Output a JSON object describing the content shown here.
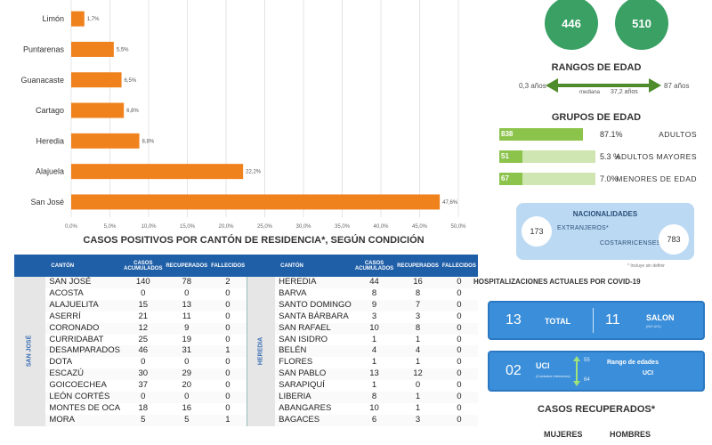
{
  "chart_data": {
    "type": "bar",
    "orientation": "horizontal",
    "categories": [
      "Limón",
      "Puntarenas",
      "Guanacaste",
      "Cartago",
      "Heredia",
      "Alajuela",
      "San José"
    ],
    "values": [
      1.7,
      5.5,
      6.5,
      6.8,
      8.8,
      22.2,
      47.6
    ],
    "value_labels": [
      "1,7%",
      "5,5%",
      "6,5%",
      "6,8%",
      "8,8%",
      "22,2%",
      "47,6%"
    ],
    "xlim": [
      0,
      50
    ],
    "x_ticks": [
      "0,0%",
      "5,0%",
      "10,0%",
      "15,0%",
      "20,0%",
      "25,0%",
      "30,0%",
      "35,0%",
      "40,0%",
      "45,0%",
      "50,0%"
    ],
    "grid": true,
    "bar_color": "#f0821e"
  },
  "table": {
    "title": "CASOS POSITIVOS POR CANTÓN DE RESIDENCIA*, SEGÚN CONDICIÓN",
    "headers": {
      "canton": "CANTÓN",
      "cases": "CASOS ACUMULADOS",
      "recovered": "RECUPERADOS",
      "deaths": "FALLECIDOS"
    },
    "province_left": "SAN JOSÉ",
    "province_right": "HEREDIA",
    "rows_left": [
      [
        "SAN JOSÉ",
        "140",
        "78",
        "2"
      ],
      [
        "ACOSTA",
        "0",
        "0",
        "0"
      ],
      [
        "ALAJUELITA",
        "15",
        "13",
        "0"
      ],
      [
        "ASERRÍ",
        "21",
        "11",
        "0"
      ],
      [
        "CORONADO",
        "12",
        "9",
        "0"
      ],
      [
        "CURRIDABAT",
        "25",
        "19",
        "0"
      ],
      [
        "DESAMPARADOS",
        "46",
        "31",
        "1"
      ],
      [
        "DOTA",
        "0",
        "0",
        "0"
      ],
      [
        "ESCAZÚ",
        "30",
        "29",
        "0"
      ],
      [
        "GOICOECHEA",
        "37",
        "20",
        "0"
      ],
      [
        "LEÓN CORTÉS",
        "0",
        "0",
        "0"
      ],
      [
        "MONTES DE OCA",
        "18",
        "16",
        "0"
      ],
      [
        "MORA",
        "5",
        "5",
        "1"
      ]
    ],
    "rows_right": [
      [
        "HEREDIA",
        "44",
        "16",
        "0"
      ],
      [
        "BARVA",
        "8",
        "8",
        "0"
      ],
      [
        "SANTO DOMINGO",
        "9",
        "7",
        "0"
      ],
      [
        "SANTA BÁRBARA",
        "3",
        "3",
        "0"
      ],
      [
        "SAN RAFAEL",
        "10",
        "8",
        "0"
      ],
      [
        "SAN ISIDRO",
        "1",
        "1",
        "0"
      ],
      [
        "BELÉN",
        "4",
        "4",
        "0"
      ],
      [
        "FLORES",
        "1",
        "1",
        "0"
      ],
      [
        "SAN PABLO",
        "13",
        "12",
        "0"
      ],
      [
        "SARAPIQUÍ",
        "1",
        "0",
        "0"
      ],
      [
        "LIBERIA",
        "8",
        "1",
        "0"
      ],
      [
        "ABANGARES",
        "10",
        "1",
        "0"
      ],
      [
        "BAGACES",
        "6",
        "3",
        "0"
      ]
    ]
  },
  "summary": {
    "circle_a": "446",
    "circle_b": "510",
    "age_ranges_title": "RANGOS DE EDAD",
    "age_min": "0,3 años",
    "age_max": "87 años",
    "age_median_label": "mediana",
    "age_median": "37,2 años",
    "age_groups_title": "GRUPOS DE EDAD",
    "groups": [
      {
        "count": "838",
        "pct": "87.1%",
        "label": "ADULTOS",
        "fraction": 0.871
      },
      {
        "count": "51",
        "pct": "5.3 %",
        "label": "ADULTOS MAYORES",
        "fraction": 0.053
      },
      {
        "count": "67",
        "pct": "7.0%",
        "label": "MENORES DE EDAD",
        "fraction": 0.07
      }
    ],
    "nationalities_title": "NACIONALIDADES",
    "foreigners_label": "EXTRANJEROS*",
    "foreigners": "173",
    "costa_ricans_label": "COSTARRICENSES",
    "costa_ricans": "783",
    "nat_footnote": "* Incluye sin definir",
    "hosp_title": "HOSPITALIZACIONES ACTUALES POR COVID-19",
    "total_num": "13",
    "total_label": "TOTAL",
    "salon_num": "11",
    "salon_label": "SALON",
    "salon_sub": "(NO UCI)",
    "uci_num": "02",
    "uci_label": "UCI",
    "uci_sub": "(Cuidados Intensivos)",
    "age_range_label": "Rango de edades",
    "age_range_sub": "UCI",
    "uci_age_max": "55",
    "uci_age_min": "64",
    "recovered_title": "CASOS RECUPERADOS*",
    "women_label": "MUJERES",
    "men_label": "HOMBRES"
  }
}
